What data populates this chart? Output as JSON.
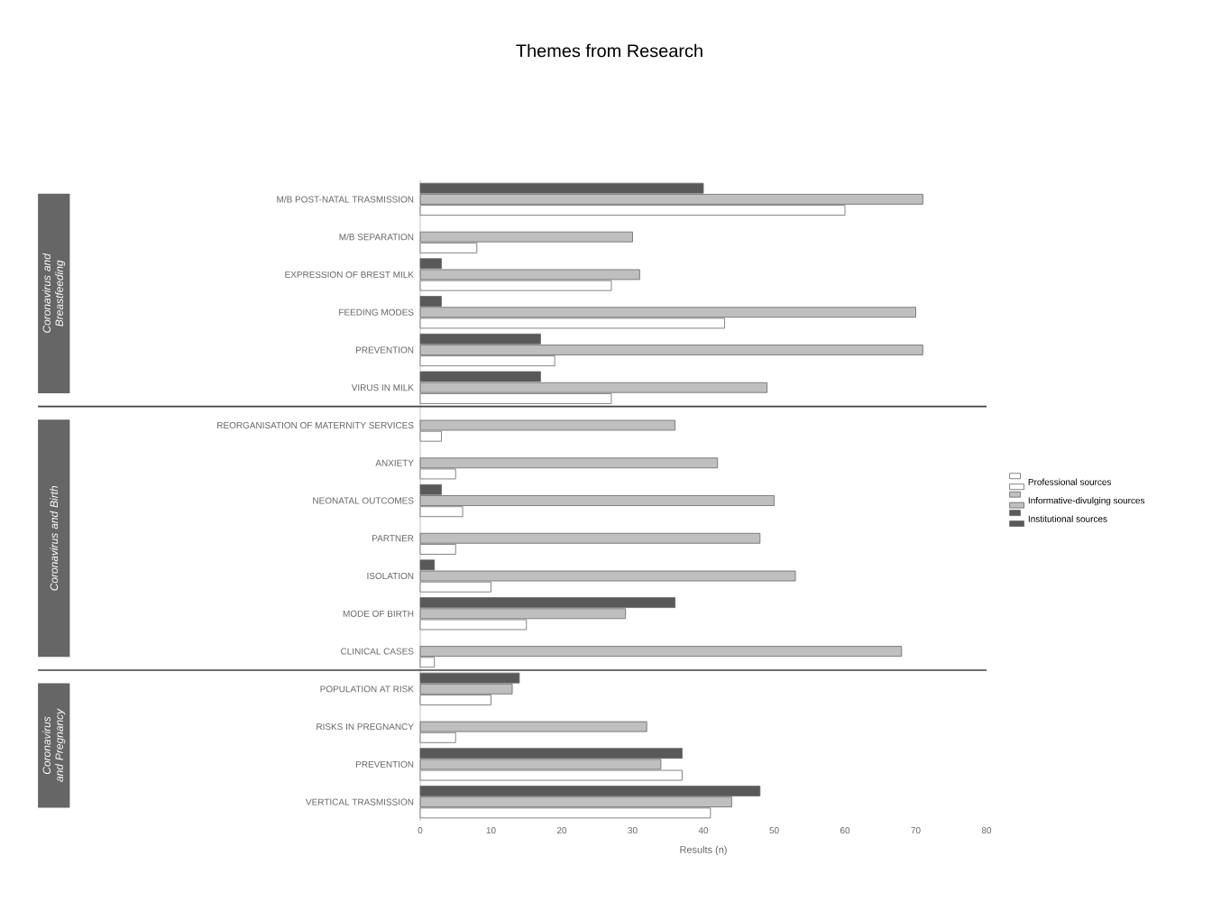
{
  "chart_data": {
    "type": "bar",
    "orientation": "horizontal",
    "title": "Themes from Research",
    "xlabel": "Results (n)",
    "categories": [
      "M/B POST-NATAL TRASMISSION",
      "M/B SEPARATION",
      "EXPRESSION OF BREST MILK",
      "FEEDING MODES",
      "PREVENTION",
      "VIRUS IN MILK",
      "REORGANISATION OF MATERNITY SERVICES",
      "ANXIETY",
      "NEONATAL OUTCOMES",
      "PARTNER",
      "ISOLATION",
      "MODE OF BIRTH",
      "CLINICAL CASES",
      "POPULATION AT RISK",
      "RISKS IN PREGNANCY",
      "PREVENTION",
      "VERTICAL TRASMISSION"
    ],
    "series": [
      {
        "name": "Professional sources",
        "color": "#ffffff",
        "values": [
          60,
          8,
          27,
          43,
          19,
          27,
          3,
          5,
          6,
          5,
          10,
          15,
          2,
          10,
          5,
          37,
          41
        ]
      },
      {
        "name": "Informative-divulging sources",
        "color": "#bfbfbf",
        "values": [
          71,
          30,
          31,
          70,
          71,
          49,
          36,
          42,
          50,
          48,
          53,
          29,
          68,
          13,
          32,
          34,
          44
        ]
      },
      {
        "name": "Institutional sources",
        "color": "#595959",
        "values": [
          40,
          null,
          3,
          3,
          17,
          17,
          null,
          null,
          3,
          null,
          2,
          36,
          null,
          14,
          null,
          37,
          48
        ]
      }
    ],
    "xlim": [
      0,
      80
    ],
    "xticks": [
      0,
      10,
      20,
      30,
      40,
      50,
      60,
      70,
      80
    ],
    "legend": "right",
    "annotations": [
      "Coronavirus and Breastfeeding",
      "Coronavirus and Birth",
      "Coronavirus and Pregnancy"
    ]
  }
}
